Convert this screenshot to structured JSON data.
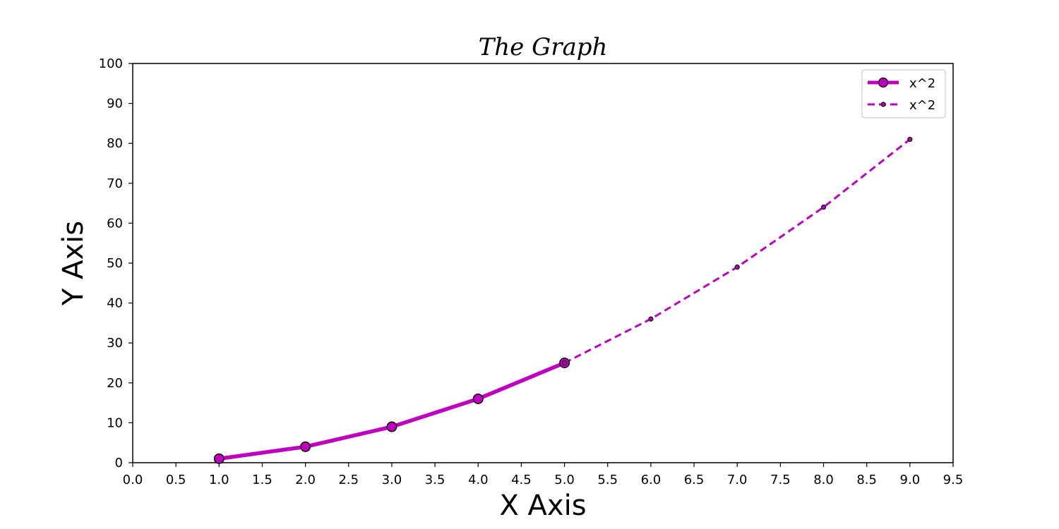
{
  "chart_data": {
    "type": "line",
    "title": "The Graph",
    "xlabel": "X Axis",
    "ylabel": "Y Axis",
    "xlim": [
      0,
      9.5
    ],
    "ylim": [
      0,
      100
    ],
    "x_ticks": [
      "0.0",
      "0.5",
      "1.0",
      "1.5",
      "2.0",
      "2.5",
      "3.0",
      "3.5",
      "4.0",
      "4.5",
      "5.0",
      "5.5",
      "6.0",
      "6.5",
      "7.0",
      "7.5",
      "8.0",
      "8.5",
      "9.0",
      "9.5"
    ],
    "y_ticks": [
      "0",
      "10",
      "20",
      "30",
      "40",
      "50",
      "60",
      "70",
      "80",
      "90",
      "100"
    ],
    "grid": false,
    "legend_position": "top-right",
    "series": [
      {
        "name": "x^2",
        "x": [
          1,
          2,
          3,
          4,
          5
        ],
        "y": [
          1,
          4,
          9,
          16,
          25
        ],
        "color": "#bf00bf",
        "line_style": "solid",
        "marker": "large-circle"
      },
      {
        "name": "x^2",
        "x": [
          5,
          6,
          7,
          8,
          9
        ],
        "y": [
          25,
          36,
          49,
          64,
          81
        ],
        "color": "#bf00bf",
        "line_style": "dashed",
        "marker": "small-circle"
      }
    ]
  }
}
